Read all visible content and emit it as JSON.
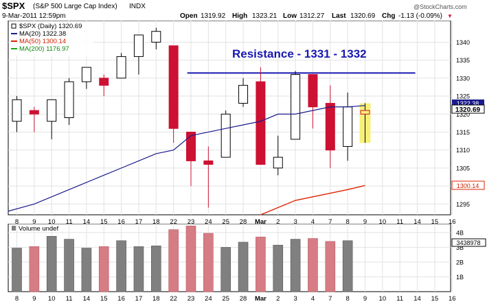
{
  "header": {
    "symbol": "$SPX",
    "name": "(S&P 500 Large Cap Index)",
    "exchange": "INDX",
    "date_time": "9-Mar-2011 12:59pm",
    "open_label": "Open",
    "open": "1319.92",
    "high_label": "High",
    "high": "1323.21",
    "low_label": "Low",
    "low": "1312.27",
    "last_label": "Last",
    "last": "1320.69",
    "chg_label": "Chg",
    "chg": "-1.13 (-0.09%)",
    "chg_marker": "▼",
    "watermark": "@StockCharts.com"
  },
  "legend": {
    "price": "$SPX (Daily) 1320.69",
    "ma20": "MA(20) 1322.38",
    "ma50": "MA(50) 1300.14",
    "ma200": "MA(200) 1176.97"
  },
  "colors": {
    "up": "#ffffff",
    "down": "#cc1133",
    "outline": "#000000",
    "ma20": "#1a1a8c",
    "ma50": "#dd2200",
    "ma200": "#11aa11",
    "highlight": "#f6f07a",
    "resistance": "#1818b0",
    "volume_up": "#808080",
    "volume_down": "#d67c84"
  },
  "annotation": {
    "text": "Resistance - 1331 - 1332",
    "level": 1332,
    "from": "22",
    "to": "14"
  },
  "volume_panel": {
    "title": "Volume undef",
    "last_value": "3438978",
    "y_ticks": [
      "4B",
      "3B",
      "2B",
      "1B"
    ]
  },
  "price_badges": {
    "ma20": "1322.38",
    "last": "1320.69",
    "ma50": "1300.14"
  },
  "chart_data": {
    "type": "candlestick",
    "x_labels": [
      "8",
      "9",
      "10",
      "11",
      "14",
      "15",
      "16",
      "17",
      "18",
      "22",
      "23",
      "24",
      "25",
      "28",
      "Mar",
      "2",
      "3",
      "4",
      "7",
      "8",
      "9",
      "10",
      "11",
      "14",
      "15",
      "16"
    ],
    "y_ticks": [
      1295,
      1300,
      1305,
      1310,
      1315,
      1320,
      1325,
      1330,
      1335,
      1340
    ],
    "ylim": [
      1292,
      1346
    ],
    "candles": [
      {
        "x": "8",
        "o": 1318,
        "h": 1325,
        "l": 1315,
        "c": 1324
      },
      {
        "x": "9",
        "o": 1321,
        "h": 1322,
        "l": 1315,
        "c": 1320
      },
      {
        "x": "10",
        "o": 1318,
        "h": 1324,
        "l": 1313,
        "c": 1324
      },
      {
        "x": "11",
        "o": 1319,
        "h": 1330,
        "l": 1317,
        "c": 1329
      },
      {
        "x": "14",
        "o": 1329,
        "h": 1333,
        "l": 1327,
        "c": 1333
      },
      {
        "x": "15",
        "o": 1330,
        "h": 1331,
        "l": 1325,
        "c": 1328
      },
      {
        "x": "16",
        "o": 1330,
        "h": 1337,
        "l": 1330,
        "c": 1336
      },
      {
        "x": "17",
        "o": 1336,
        "h": 1342,
        "l": 1331,
        "c": 1342
      },
      {
        "x": "18",
        "o": 1340,
        "h": 1344,
        "l": 1338,
        "c": 1343
      },
      {
        "x": "22",
        "o": 1339,
        "h": 1339,
        "l": 1312,
        "c": 1316
      },
      {
        "x": "23",
        "o": 1315,
        "h": 1315,
        "l": 1300,
        "c": 1307
      },
      {
        "x": "24",
        "o": 1307,
        "h": 1311,
        "l": 1294,
        "c": 1306
      },
      {
        "x": "25",
        "o": 1308,
        "h": 1321,
        "l": 1308,
        "c": 1320
      },
      {
        "x": "28",
        "o": 1323,
        "h": 1330,
        "l": 1322,
        "c": 1328
      },
      {
        "x": "Mar",
        "o": 1329,
        "h": 1333,
        "l": 1306,
        "c": 1306
      },
      {
        "x": "2",
        "o": 1305,
        "h": 1314,
        "l": 1303,
        "c": 1308
      },
      {
        "x": "3",
        "o": 1313,
        "h": 1332,
        "l": 1313,
        "c": 1331
      },
      {
        "x": "4",
        "o": 1331,
        "h": 1331,
        "l": 1316,
        "c": 1322
      },
      {
        "x": "7",
        "o": 1323,
        "h": 1328,
        "l": 1305,
        "c": 1310
      },
      {
        "x": "8",
        "o": 1311,
        "h": 1326,
        "l": 1307,
        "c": 1322
      },
      {
        "x": "9",
        "o": 1320,
        "h": 1323,
        "l": 1312,
        "c": 1321
      }
    ],
    "ma20": [
      1293,
      1295,
      1297,
      1299,
      1301,
      1303,
      1305,
      1307,
      1309,
      1310,
      1314,
      1315,
      1316,
      1317,
      1318,
      1320,
      1320,
      1321,
      1322,
      1322,
      1322.38
    ],
    "ma50_x": [
      "Mar",
      "2",
      "3",
      "4",
      "7",
      "8",
      "9"
    ],
    "ma50": [
      1292,
      1294,
      1296,
      1297,
      1298,
      1299,
      1300.14
    ],
    "volume": [
      {
        "x": "8",
        "v": 2.95,
        "dir": "up"
      },
      {
        "x": "9",
        "v": 3.05,
        "dir": "down"
      },
      {
        "x": "10",
        "v": 3.75,
        "dir": "up"
      },
      {
        "x": "11",
        "v": 3.55,
        "dir": "up"
      },
      {
        "x": "14",
        "v": 2.95,
        "dir": "up"
      },
      {
        "x": "15",
        "v": 3.05,
        "dir": "down"
      },
      {
        "x": "16",
        "v": 3.45,
        "dir": "up"
      },
      {
        "x": "17",
        "v": 3.05,
        "dir": "up"
      },
      {
        "x": "18",
        "v": 3.1,
        "dir": "up"
      },
      {
        "x": "22",
        "v": 4.2,
        "dir": "down"
      },
      {
        "x": "23",
        "v": 4.45,
        "dir": "down"
      },
      {
        "x": "24",
        "v": 3.95,
        "dir": "down"
      },
      {
        "x": "25",
        "v": 3.0,
        "dir": "up"
      },
      {
        "x": "28",
        "v": 3.35,
        "dir": "up"
      },
      {
        "x": "Mar",
        "v": 3.7,
        "dir": "down"
      },
      {
        "x": "2",
        "v": 3.15,
        "dir": "up"
      },
      {
        "x": "3",
        "v": 3.55,
        "dir": "up"
      },
      {
        "x": "4",
        "v": 3.6,
        "dir": "down"
      },
      {
        "x": "7",
        "v": 3.4,
        "dir": "down"
      },
      {
        "x": "8",
        "v": 3.45,
        "dir": "up"
      }
    ],
    "volume_ylim": [
      0,
      4.6
    ],
    "highlight_index": 20
  }
}
